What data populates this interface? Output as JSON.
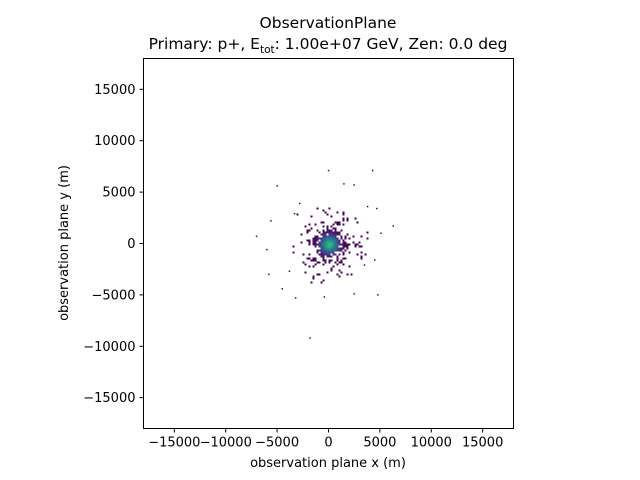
{
  "chart_data": {
    "type": "heatmap",
    "title": "ObservationPlane",
    "subtitle": {
      "prefix": "Primary: p+, E",
      "subscript": "tot",
      "suffix": ": 1.00e+07 GeV, Zen: 0.0 deg"
    },
    "xlabel": "observation plane x (m)",
    "ylabel": "observation plane y (m)",
    "xlim": [
      -18000,
      18000
    ],
    "ylim": [
      -18000,
      18000
    ],
    "x_ticks": [
      -15000,
      -10000,
      -5000,
      0,
      5000,
      10000,
      15000
    ],
    "y_ticks": [
      -15000,
      -10000,
      -5000,
      0,
      5000,
      10000,
      15000
    ],
    "x_tick_labels": [
      "−15000",
      "−10000",
      "−5000",
      "0",
      "5000",
      "10000",
      "15000"
    ],
    "y_tick_labels": [
      "−15000",
      "−10000",
      "−5000",
      "0",
      "5000",
      "10000",
      "15000"
    ],
    "grid": false,
    "colormap": "viridis",
    "distribution": {
      "center_x": 0,
      "center_y": 0,
      "core_sigma_m": 700,
      "halo_sigma_m": 1500
    },
    "outliers": [
      {
        "x": -5000,
        "y": 5600
      },
      {
        "x": -2800,
        "y": 3900
      },
      {
        "x": -5600,
        "y": 2200
      },
      {
        "x": -7000,
        "y": 700
      },
      {
        "x": -6000,
        "y": -600
      },
      {
        "x": -5800,
        "y": -3000
      },
      {
        "x": -4500,
        "y": -4400
      },
      {
        "x": -3200,
        "y": -5300
      },
      {
        "x": -1800,
        "y": -9200
      },
      {
        "x": 0,
        "y": 7100
      },
      {
        "x": 1500,
        "y": 5800
      },
      {
        "x": 2500,
        "y": 5700
      },
      {
        "x": 4300,
        "y": 7100
      },
      {
        "x": 3800,
        "y": 3600
      },
      {
        "x": 4700,
        "y": 3400
      },
      {
        "x": 5100,
        "y": 1000
      },
      {
        "x": 6300,
        "y": 1700
      },
      {
        "x": 4500,
        "y": -1600
      },
      {
        "x": 4800,
        "y": -5000
      },
      {
        "x": 2500,
        "y": -4900
      },
      {
        "x": -400,
        "y": -5200
      },
      {
        "x": 3500,
        "y": -2100
      },
      {
        "x": -3800,
        "y": -2700
      },
      {
        "x": -3300,
        "y": 2900
      }
    ]
  }
}
